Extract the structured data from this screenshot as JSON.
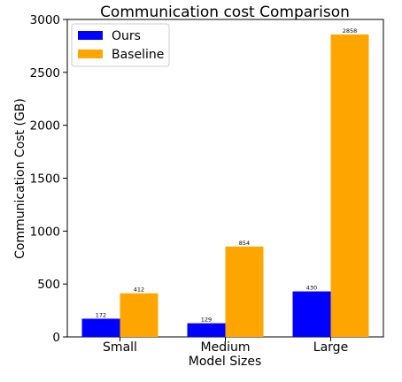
{
  "chart_data": {
    "type": "bar",
    "title": "Communication cost Comparison",
    "xlabel": "Model Sizes",
    "ylabel": "Communication Cost (GB)",
    "categories": [
      "Small",
      "Medium",
      "Large"
    ],
    "series": [
      {
        "name": "Ours",
        "values": [
          172,
          129,
          430
        ],
        "color": "#0000ff"
      },
      {
        "name": "Baseline",
        "values": [
          412,
          854,
          2858
        ],
        "color": "#ffa500"
      }
    ],
    "ylim": [
      0,
      3000
    ],
    "yticks": [
      0,
      500,
      1000,
      1500,
      2000,
      2500,
      3000
    ],
    "grid": false,
    "legend": "top-left",
    "data_labels": true
  }
}
